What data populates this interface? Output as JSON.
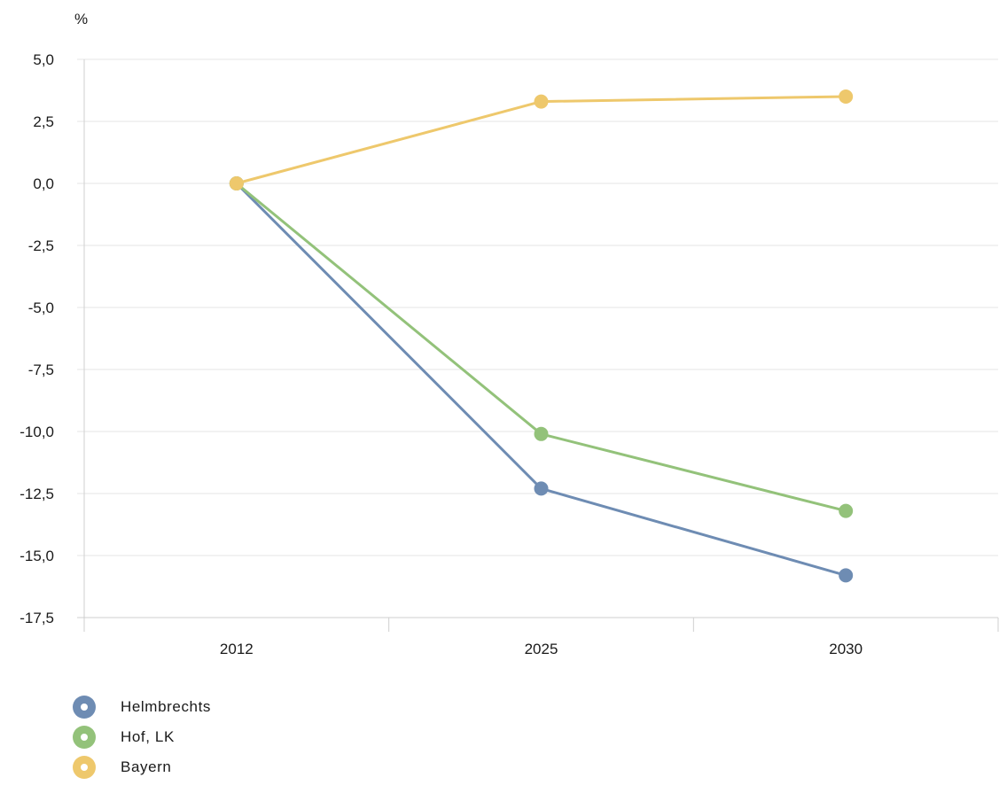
{
  "chart_data": {
    "type": "line",
    "unit_label": "%",
    "categories": [
      "2012",
      "2025",
      "2030"
    ],
    "ylim": [
      -17.5,
      5.0
    ],
    "yticks": [
      "5,0",
      "2,5",
      "0,0",
      "-2,5",
      "-5,0",
      "-7,5",
      "-10,0",
      "-12,5",
      "-15,0",
      "-17,5"
    ],
    "grid": true,
    "legend_position": "bottom-left",
    "series": [
      {
        "name": "Helmbrechts",
        "color": "#6e8cb3",
        "values": [
          0.0,
          -12.3,
          -15.8
        ]
      },
      {
        "name": "Hof, LK",
        "color": "#93c27a",
        "values": [
          0.0,
          -10.1,
          -13.2
        ]
      },
      {
        "name": "Bayern",
        "color": "#eec86c",
        "values": [
          0.0,
          3.3,
          3.5
        ]
      }
    ]
  }
}
